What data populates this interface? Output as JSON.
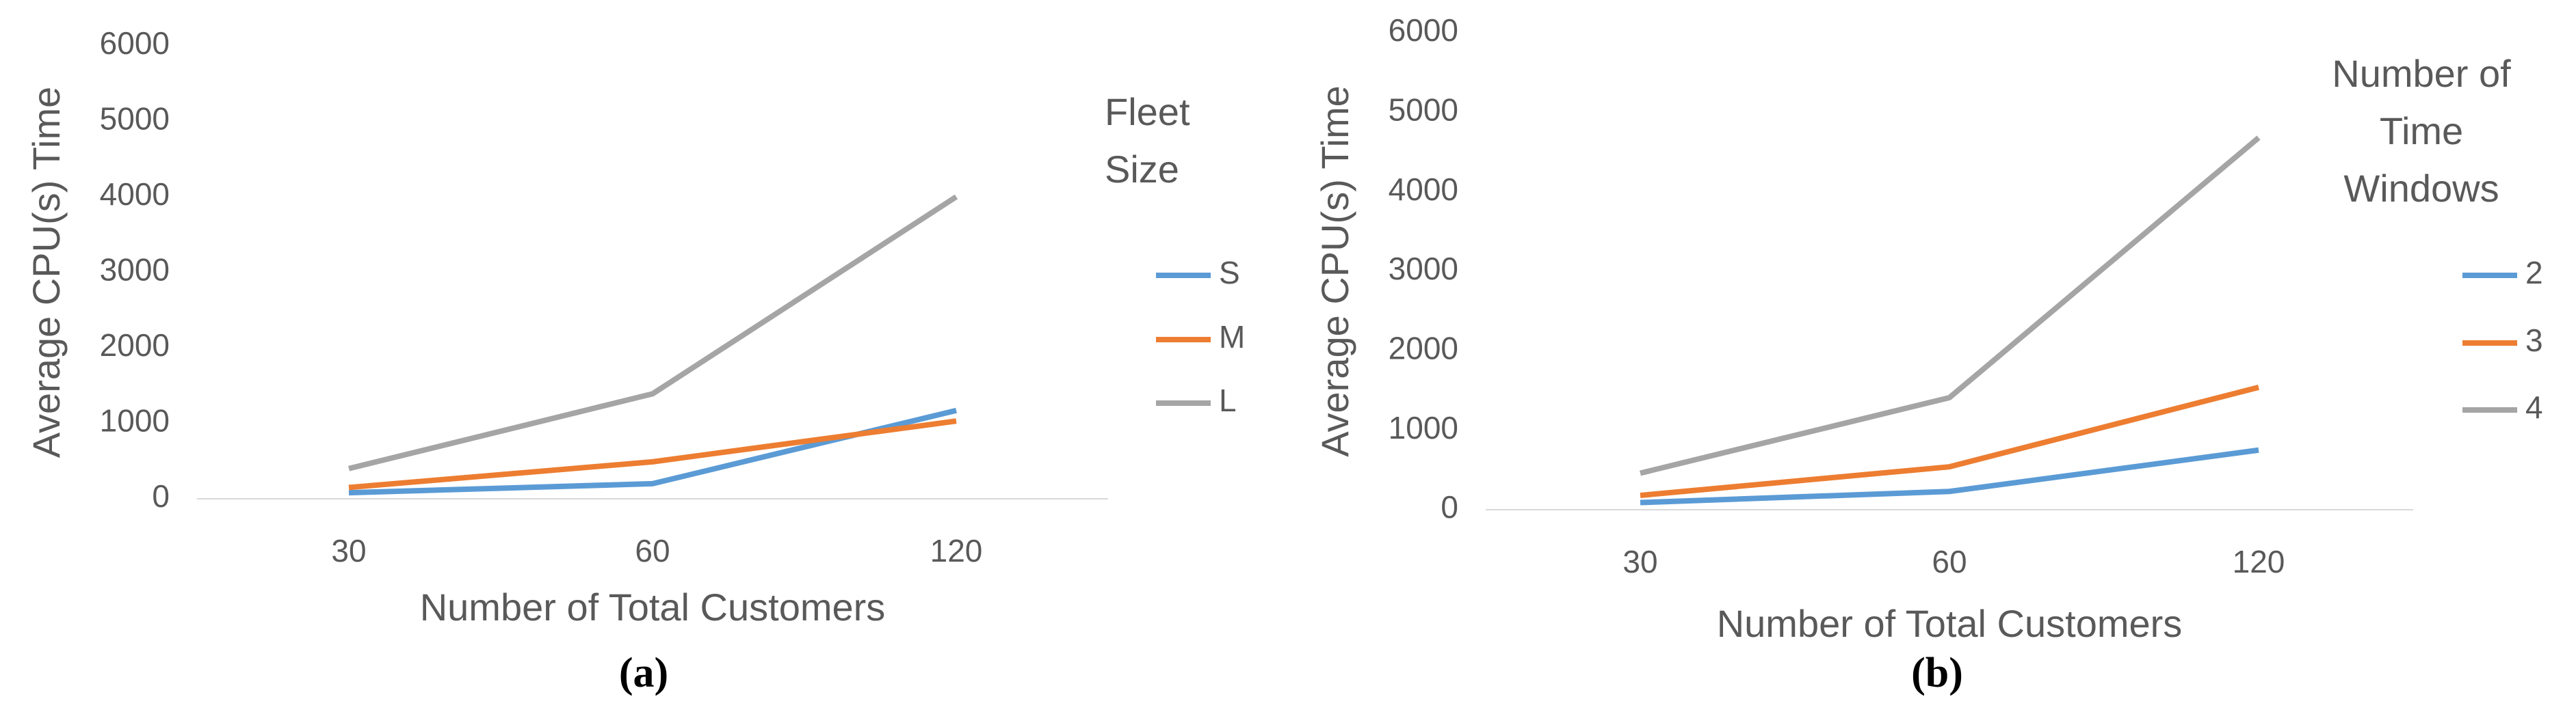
{
  "chart_data": [
    {
      "type": "line",
      "caption": "(a)",
      "x_label": "Number of Total Customers",
      "y_label": "Average CPU(s) Time",
      "legend_title": "Fleet Size",
      "categories": [
        "30",
        "60",
        "120"
      ],
      "series": [
        {
          "name": "S",
          "color": "#5b9bd5",
          "values": [
            80,
            200,
            1170
          ]
        },
        {
          "name": "M",
          "color": "#ed7d31",
          "values": [
            150,
            490,
            1030
          ]
        },
        {
          "name": "L",
          "color": "#a5a5a5",
          "values": [
            400,
            1390,
            4000
          ]
        }
      ],
      "ylim": [
        0,
        6000
      ],
      "yticks": [
        0,
        1000,
        2000,
        3000,
        4000,
        5000,
        6000
      ],
      "legend": "right"
    },
    {
      "type": "line",
      "caption": "(b)",
      "x_label": "Number of Total Customers",
      "y_label": "Average CPU(s) Time",
      "legend_title": "Number of Time Windows",
      "categories": [
        "30",
        "60",
        "120"
      ],
      "series": [
        {
          "name": "2",
          "color": "#5b9bd5",
          "values": [
            90,
            230,
            750
          ]
        },
        {
          "name": "3",
          "color": "#ed7d31",
          "values": [
            180,
            540,
            1540
          ]
        },
        {
          "name": "4",
          "color": "#a5a5a5",
          "values": [
            460,
            1410,
            4680
          ]
        }
      ],
      "ylim": [
        0,
        6000
      ],
      "yticks": [
        0,
        1000,
        2000,
        3000,
        4000,
        5000,
        6000
      ],
      "legend": "right"
    }
  ]
}
